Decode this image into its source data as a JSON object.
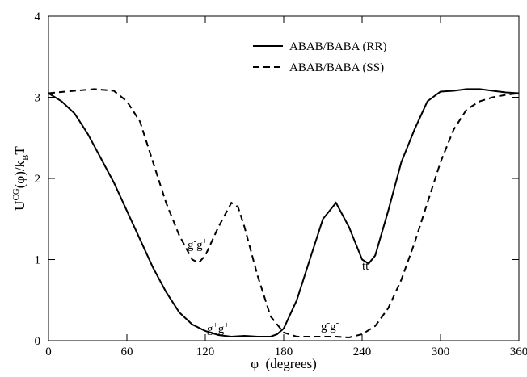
{
  "chart_data": {
    "type": "line",
    "xlabel": "φ  (degrees)",
    "ylabel": [
      "U",
      "CG",
      "(φ)/k",
      "B",
      "T"
    ],
    "xlim": [
      0,
      360
    ],
    "xticks": [
      0,
      60,
      120,
      180,
      240,
      300,
      360
    ],
    "ylim": [
      0,
      4
    ],
    "yticks": [
      0,
      1,
      2,
      3,
      4
    ],
    "series": [
      {
        "name": "ABAB/BABA (RR)",
        "color": "#000000",
        "dash": "solid",
        "x": [
          0,
          10,
          20,
          30,
          40,
          50,
          60,
          70,
          80,
          90,
          100,
          110,
          120,
          130,
          140,
          150,
          160,
          170,
          175,
          180,
          190,
          200,
          210,
          220,
          230,
          240,
          245,
          250,
          260,
          270,
          280,
          290,
          300,
          310,
          320,
          330,
          340,
          350,
          360
        ],
        "values": [
          3.05,
          2.95,
          2.8,
          2.55,
          2.25,
          1.95,
          1.6,
          1.25,
          0.9,
          0.6,
          0.35,
          0.2,
          0.12,
          0.07,
          0.05,
          0.06,
          0.05,
          0.05,
          0.08,
          0.15,
          0.5,
          1.0,
          1.5,
          1.7,
          1.4,
          1.0,
          0.95,
          1.05,
          1.6,
          2.2,
          2.6,
          2.95,
          3.07,
          3.08,
          3.1,
          3.1,
          3.08,
          3.06,
          3.05
        ]
      },
      {
        "name": "ABAB/BABA (SS)",
        "color": "#000000",
        "dash": "dashed",
        "x": [
          0,
          20,
          35,
          50,
          60,
          70,
          80,
          90,
          100,
          110,
          115,
          120,
          130,
          140,
          145,
          150,
          160,
          170,
          180,
          190,
          200,
          220,
          230,
          240,
          250,
          260,
          270,
          280,
          290,
          300,
          310,
          320,
          330,
          340,
          350,
          360
        ],
        "values": [
          3.05,
          3.08,
          3.1,
          3.08,
          2.95,
          2.7,
          2.2,
          1.7,
          1.3,
          1.0,
          0.96,
          1.05,
          1.4,
          1.7,
          1.65,
          1.4,
          0.8,
          0.3,
          0.1,
          0.05,
          0.05,
          0.05,
          0.04,
          0.08,
          0.18,
          0.4,
          0.75,
          1.2,
          1.7,
          2.2,
          2.6,
          2.85,
          2.95,
          3.0,
          3.03,
          3.05
        ]
      }
    ],
    "annotations": [
      [
        "g",
        "-",
        "g",
        "+"
      ],
      [
        "g",
        "+",
        "g",
        "+"
      ],
      [
        "g",
        "-",
        "g",
        "-"
      ],
      [
        "tt"
      ]
    ]
  }
}
